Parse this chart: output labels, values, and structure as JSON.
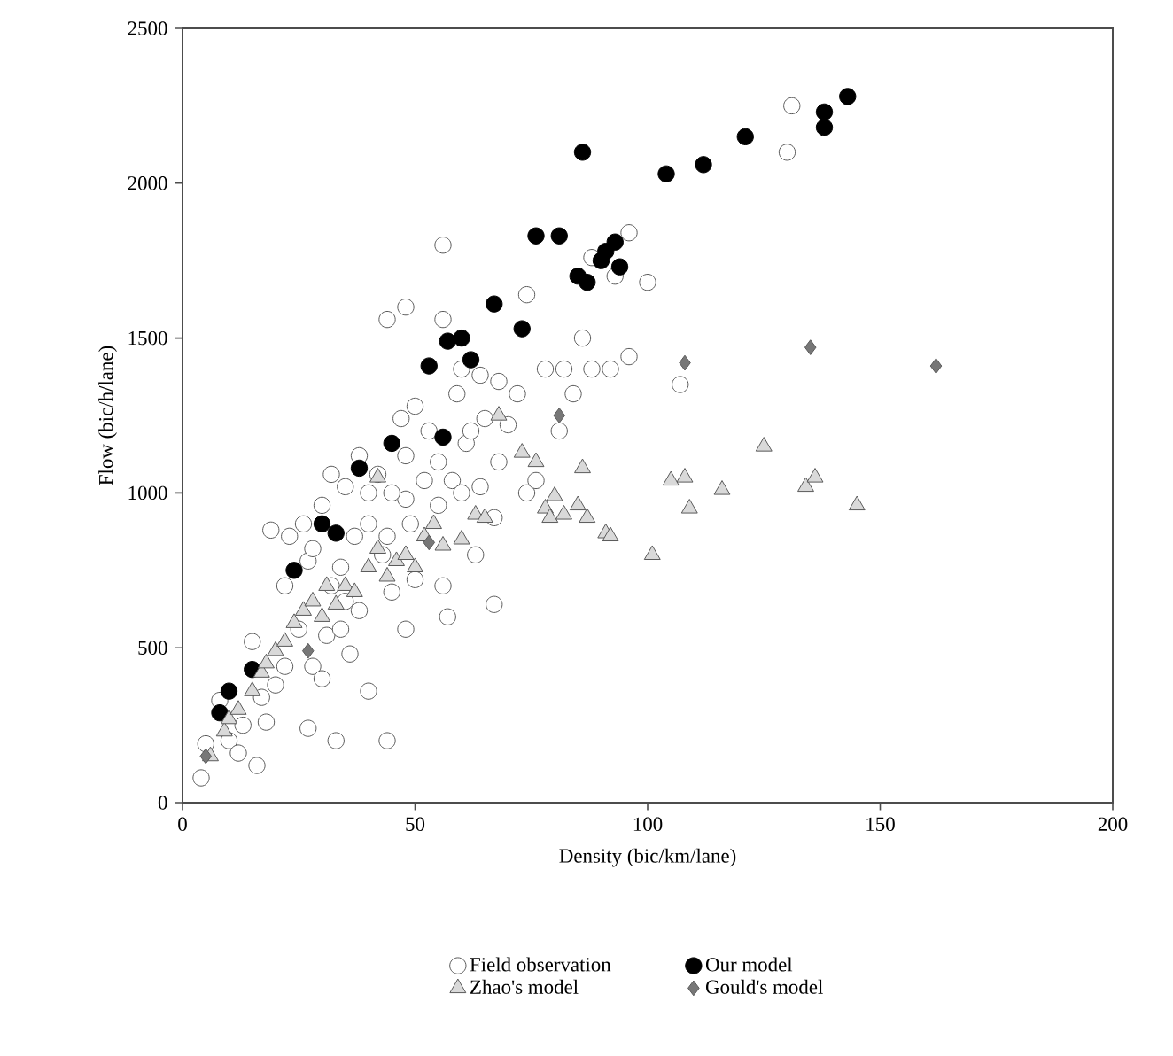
{
  "chart_data": {
    "type": "scatter",
    "xlabel": "Density (bic/km/lane)",
    "ylabel": "Flow (bic/h/lane)",
    "xlim": [
      0,
      200
    ],
    "ylim": [
      0,
      2500
    ],
    "xticks": [
      0,
      50,
      100,
      150,
      200
    ],
    "yticks": [
      0,
      500,
      1000,
      1500,
      2000,
      2500
    ],
    "grid": false,
    "legend": "bottom",
    "series": [
      {
        "name": "Field observation",
        "color": "#ffffff",
        "marker": "circle",
        "x": [
          130,
          131,
          100,
          96,
          93,
          88,
          74,
          86,
          56,
          44,
          48,
          56,
          60,
          64,
          68,
          72,
          78,
          82,
          84,
          88,
          92,
          96,
          107,
          81,
          74,
          48,
          57,
          67,
          40,
          44,
          33,
          27,
          16,
          4,
          5,
          8,
          10,
          12,
          13,
          15,
          17,
          18,
          19,
          20,
          22,
          22,
          23,
          25,
          26,
          27,
          28,
          28,
          30,
          30,
          31,
          32,
          32,
          34,
          34,
          35,
          36,
          37,
          38,
          38,
          40,
          40,
          42,
          43,
          44,
          45,
          47,
          48,
          48,
          49,
          50,
          50,
          52,
          53,
          55,
          55,
          56,
          58,
          59,
          60,
          61,
          62,
          63,
          64,
          65,
          67,
          68,
          70,
          76,
          35,
          45
        ],
        "values": [
          2100,
          2250,
          1680,
          1840,
          1700,
          1760,
          1640,
          1500,
          1800,
          1560,
          1600,
          1560,
          1400,
          1380,
          1360,
          1320,
          1400,
          1400,
          1320,
          1400,
          1400,
          1440,
          1350,
          1200,
          1000,
          560,
          600,
          640,
          360,
          200,
          200,
          240,
          120,
          80,
          190,
          330,
          200,
          160,
          250,
          520,
          340,
          260,
          880,
          380,
          440,
          700,
          860,
          560,
          900,
          780,
          820,
          440,
          960,
          400,
          540,
          1060,
          700,
          760,
          560,
          1020,
          480,
          860,
          1120,
          620,
          1000,
          900,
          1060,
          800,
          860,
          680,
          1240,
          1120,
          980,
          900,
          1280,
          720,
          1040,
          1200,
          1100,
          960,
          700,
          1040,
          1320,
          1000,
          1160,
          1200,
          800,
          1020,
          1240,
          920,
          1100,
          1220,
          1040,
          650,
          1000
        ]
      },
      {
        "name": "Our model",
        "color": "#000000",
        "marker": "circle",
        "x": [
          8,
          10,
          15,
          24,
          30,
          33,
          38,
          45,
          53,
          56,
          57,
          60,
          62,
          67,
          73,
          76,
          81,
          85,
          86,
          87,
          90,
          91,
          93,
          94,
          104,
          112,
          121,
          138,
          138,
          143
        ],
        "values": [
          290,
          360,
          430,
          750,
          900,
          870,
          1080,
          1160,
          1410,
          1180,
          1490,
          1500,
          1430,
          1610,
          1530,
          1830,
          1830,
          1700,
          2100,
          1680,
          1750,
          1780,
          1810,
          1730,
          2030,
          2060,
          2150,
          2230,
          2180,
          2280
        ]
      },
      {
        "name": "Zhao's model",
        "color": "#d9d9d9",
        "marker": "triangle",
        "x": [
          6,
          9,
          10,
          12,
          15,
          17,
          18,
          20,
          22,
          24,
          26,
          28,
          30,
          31,
          33,
          35,
          37,
          40,
          42,
          44,
          46,
          48,
          50,
          52,
          54,
          56,
          60,
          63,
          65,
          68,
          73,
          76,
          78,
          79,
          80,
          82,
          85,
          86,
          87,
          91,
          92,
          101,
          105,
          108,
          109,
          116,
          125,
          134,
          136,
          145,
          42
        ],
        "values": [
          150,
          230,
          270,
          300,
          360,
          420,
          450,
          490,
          520,
          580,
          620,
          650,
          600,
          700,
          640,
          700,
          680,
          760,
          820,
          730,
          780,
          800,
          760,
          860,
          900,
          830,
          850,
          930,
          920,
          1250,
          1130,
          1100,
          950,
          920,
          990,
          930,
          960,
          1080,
          920,
          870,
          860,
          800,
          1040,
          1050,
          950,
          1010,
          1150,
          1020,
          1050,
          960,
          1050
        ]
      },
      {
        "name": "Gould's model",
        "color": "#777777",
        "marker": "diamond",
        "x": [
          5,
          27,
          53,
          81,
          108,
          135,
          162
        ],
        "values": [
          150,
          490,
          840,
          1250,
          1420,
          1470,
          1410
        ]
      }
    ]
  }
}
